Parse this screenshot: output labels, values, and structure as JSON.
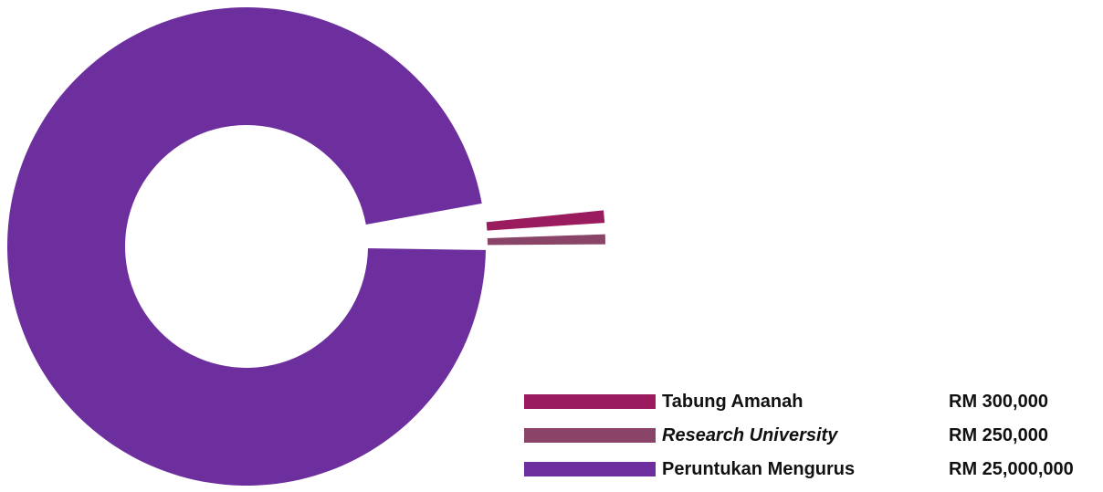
{
  "chart_data": {
    "type": "pie",
    "donut": true,
    "slices": [
      {
        "label": "Tabung Amanah",
        "value_text": "RM 300,000",
        "value": 300000,
        "color": "#9b1b5f",
        "italic": false,
        "exploded": true
      },
      {
        "label": "Research University",
        "value_text": "RM 250,000",
        "value": 250000,
        "color": "#8a4468",
        "italic": true,
        "exploded": true
      },
      {
        "label": "Peruntukan Mengurus",
        "value_text": "RM 25,000,000",
        "value": 25000000,
        "color": "#6e2f9e",
        "italic": false,
        "exploded": false
      }
    ],
    "legend_position": "bottom-right"
  }
}
